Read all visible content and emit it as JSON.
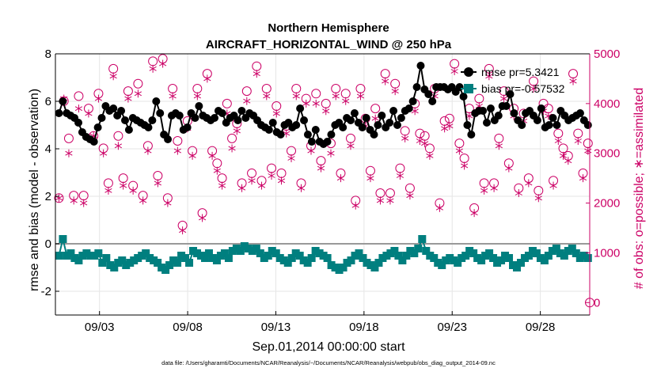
{
  "chart_data": {
    "type": "line",
    "title": "Northern Hemisphere",
    "subtitle": "AIRCRAFT_HORIZONTAL_WIND @ 250 hPa",
    "xlabel": "Sep.01,2014 00:00:00 start",
    "ylabel_left": "rmse and bias (model - observation)",
    "ylabel_right": "# of obs: o=possible; ∗=assimilated",
    "footnote": "data file: /Users/gharamti/Documents/NCAR/Reanalysis/~/Documents/NCAR/Reanalysis/webpub/obs_diag_output_2014-09.nc",
    "ylim_left": [
      -3,
      8
    ],
    "ylim_right": [
      -250,
      5000
    ],
    "xlim": [
      0.5,
      30.8
    ],
    "left_ticks": [
      "-2",
      "0",
      "2",
      "4",
      "6",
      "8"
    ],
    "right_ticks": [
      "0",
      "1000",
      "2000",
      "3000",
      "4000",
      "5000"
    ],
    "x_ticks": [
      {
        "day": 3,
        "label": "09/03"
      },
      {
        "day": 8,
        "label": "09/08"
      },
      {
        "day": 13,
        "label": "09/13"
      },
      {
        "day": 18,
        "label": "09/18"
      },
      {
        "day": 23,
        "label": "09/23"
      },
      {
        "day": 28,
        "label": "09/28"
      }
    ],
    "series": [
      {
        "name": "rmse pr=5.3421",
        "color": "#000000",
        "marker": "circle",
        "values": [
          5.5,
          6.0,
          5.5,
          5.4,
          5.3,
          5.1,
          4.7,
          4.5,
          4.4,
          4.3,
          4.9,
          5.3,
          5.8,
          5.6,
          5.7,
          5.4,
          5.6,
          5.2,
          4.8,
          5.3,
          5.2,
          5.1,
          5.0,
          4.9,
          5.2,
          6.0,
          5.5,
          4.6,
          4.4,
          5.4,
          5.5,
          5.4,
          4.8,
          4.9,
          5.5,
          5.3,
          5.8,
          5.4,
          5.3,
          5.2,
          5.3,
          5.6,
          5.5,
          5.1,
          5.3,
          5.4,
          5.2,
          5.6,
          5.3,
          5.5,
          5.4,
          5.2,
          5.0,
          4.9,
          4.8,
          5.1,
          4.7,
          4.6,
          5.0,
          5.1,
          4.9,
          5.0,
          5.7,
          5.2,
          4.6,
          4.3,
          4.8,
          4.3,
          4.2,
          4.3,
          4.6,
          5.0,
          5.1,
          4.9,
          5.3,
          5.2,
          5.5,
          5.1,
          4.9,
          5.3,
          4.8,
          4.6,
          5.0,
          5.4,
          4.9,
          5.1,
          5.6,
          5.0,
          5.3,
          5.6,
          5.7,
          6.0,
          6.6,
          7.5,
          6.5,
          6.3,
          6.0,
          6.6,
          6.6,
          6.6,
          6.5,
          6.6,
          6.4,
          6.6,
          6.2,
          5.0,
          4.6,
          5.5,
          5.6,
          5.6,
          5.1,
          5.7,
          5.2,
          5.4,
          5.8,
          5.8,
          6.3,
          5.5,
          5.2,
          5.0,
          5.5,
          5.6,
          5.4,
          5.2,
          5.7,
          4.9,
          5.0,
          5.3,
          5.0,
          5.6,
          5.4,
          5.2,
          5.3,
          5.4,
          5.5,
          5.2,
          5.0
        ],
        "type": "line"
      },
      {
        "name": "bias pr=-0.57532",
        "color": "#007f7f",
        "marker": "square",
        "values": [
          -0.5,
          0.2,
          -0.5,
          -0.4,
          -0.6,
          -0.7,
          -0.5,
          -0.4,
          -0.5,
          -0.5,
          -0.4,
          -0.8,
          -0.6,
          -0.9,
          -1.0,
          -0.8,
          -0.7,
          -0.9,
          -0.8,
          -0.7,
          -0.6,
          -0.5,
          -0.4,
          -0.6,
          -0.7,
          -0.8,
          -1.0,
          -1.1,
          -0.9,
          -0.7,
          -0.8,
          -0.5,
          -0.6,
          -0.8,
          -0.3,
          -0.4,
          -0.5,
          -0.6,
          -0.4,
          -0.6,
          -0.7,
          -0.5,
          -0.4,
          -0.6,
          -0.3,
          -0.2,
          -0.3,
          -0.1,
          -0.2,
          -0.3,
          -0.2,
          -0.4,
          -0.6,
          -0.5,
          -0.3,
          -0.4,
          -0.6,
          -0.7,
          -0.8,
          -0.6,
          -0.4,
          -0.5,
          -0.7,
          -0.8,
          -0.6,
          -0.3,
          -0.4,
          -0.5,
          -0.6,
          -0.9,
          -1.0,
          -1.1,
          -1.0,
          -0.8,
          -0.7,
          -0.5,
          -0.4,
          -0.6,
          -0.8,
          -0.9,
          -1.0,
          -0.8,
          -0.6,
          -0.5,
          -0.4,
          -0.3,
          -0.5,
          -0.7,
          -0.5,
          -0.3,
          -0.4,
          -0.2,
          0.2,
          -0.3,
          -0.5,
          -0.6,
          -0.8,
          -0.9,
          -0.7,
          -0.6,
          -0.7,
          -0.8,
          -0.6,
          -0.5,
          -0.3,
          -0.4,
          -0.6,
          -0.7,
          -0.5,
          -0.4,
          -0.6,
          -0.8,
          -0.7,
          -0.5,
          -0.6,
          -0.9,
          -1.0,
          -0.8,
          -0.6,
          -0.5,
          -0.3,
          -0.4,
          -0.6,
          -0.7,
          -0.5,
          -0.3,
          -0.2,
          -0.4,
          -0.5,
          -0.3,
          -0.2,
          -0.4,
          -0.6,
          -0.5,
          -0.6
        ],
        "type": "line"
      },
      {
        "color": "#cc0066",
        "marker": "open-circle",
        "axis": "right",
        "values": [
          2100,
          4050,
          3300,
          2150,
          4150,
          2150,
          3900,
          3350,
          4200,
          3100,
          2400,
          4700,
          3350,
          2500,
          4250,
          2350,
          4400,
          2150,
          3150,
          4850,
          2550,
          4900,
          2100,
          4300,
          3250,
          1550,
          3650,
          3050,
          4300,
          1800,
          4600,
          3050,
          2800,
          2500,
          4000,
          3300,
          3600,
          2400,
          4250,
          2600,
          4750,
          2450,
          4300,
          2700,
          3950,
          2600,
          3550,
          3050,
          4300,
          2400,
          4100,
          3150,
          4200,
          2850,
          4000,
          3200,
          4300,
          2600,
          4200,
          3300,
          2050,
          4300,
          3700,
          2650,
          3900,
          2200,
          4600,
          2200,
          4400,
          2700,
          3450,
          2300,
          4000,
          3400,
          3350,
          3100,
          4300,
          2000,
          3650,
          3700,
          4800,
          3200,
          2900,
          3900,
          1900,
          4100,
          2400,
          4700,
          2400,
          3300,
          4250,
          2800,
          3900,
          2300,
          3800,
          2500,
          4450,
          2250,
          4000,
          3900,
          2450,
          3400,
          3100,
          2950,
          4600,
          3400,
          2600,
          3200
        ],
        "type": "scatter"
      },
      {
        "color": "#cc0066",
        "marker": "asterisk",
        "axis": "right",
        "values": [
          2100,
          4100,
          3000,
          2050,
          3900,
          2000,
          3800,
          3350,
          4100,
          3000,
          2250,
          4550,
          3150,
          2350,
          4100,
          2250,
          4200,
          2050,
          3050,
          4700,
          2400,
          4800,
          2000,
          4150,
          3050,
          1450,
          3500,
          2950,
          4150,
          1700,
          4500,
          2950,
          2650,
          2350,
          3800,
          3100,
          3450,
          2300,
          4050,
          2450,
          4600,
          2350,
          4150,
          2550,
          3800,
          2450,
          3400,
          2900,
          4150,
          2300,
          4000,
          3050,
          4000,
          2700,
          3850,
          3000,
          4150,
          2500,
          4050,
          3150,
          1950,
          4150,
          3550,
          2500,
          3700,
          2050,
          4450,
          2050,
          4250,
          2550,
          3300,
          2150,
          3850,
          3250,
          3200,
          2950,
          4150,
          1900,
          3500,
          3550,
          4650,
          3050,
          2750,
          3750,
          1800,
          3950,
          2250,
          4550,
          2300,
          3150,
          4100,
          2700,
          3750,
          2200,
          3650,
          2400,
          4300,
          2100,
          3850,
          3750,
          2350,
          3250,
          2950,
          2850,
          4450,
          3250,
          2500,
          3050
        ],
        "type": "scatter"
      }
    ],
    "legend": {
      "position": "top-right",
      "entries": [
        {
          "label": "rmse pr=5.3421",
          "color": "#000000",
          "marker": "circle"
        },
        {
          "label": "bias pr=-0.57532",
          "color": "#007f7f",
          "marker": "square"
        }
      ]
    },
    "grid": true,
    "zero_line": true
  }
}
